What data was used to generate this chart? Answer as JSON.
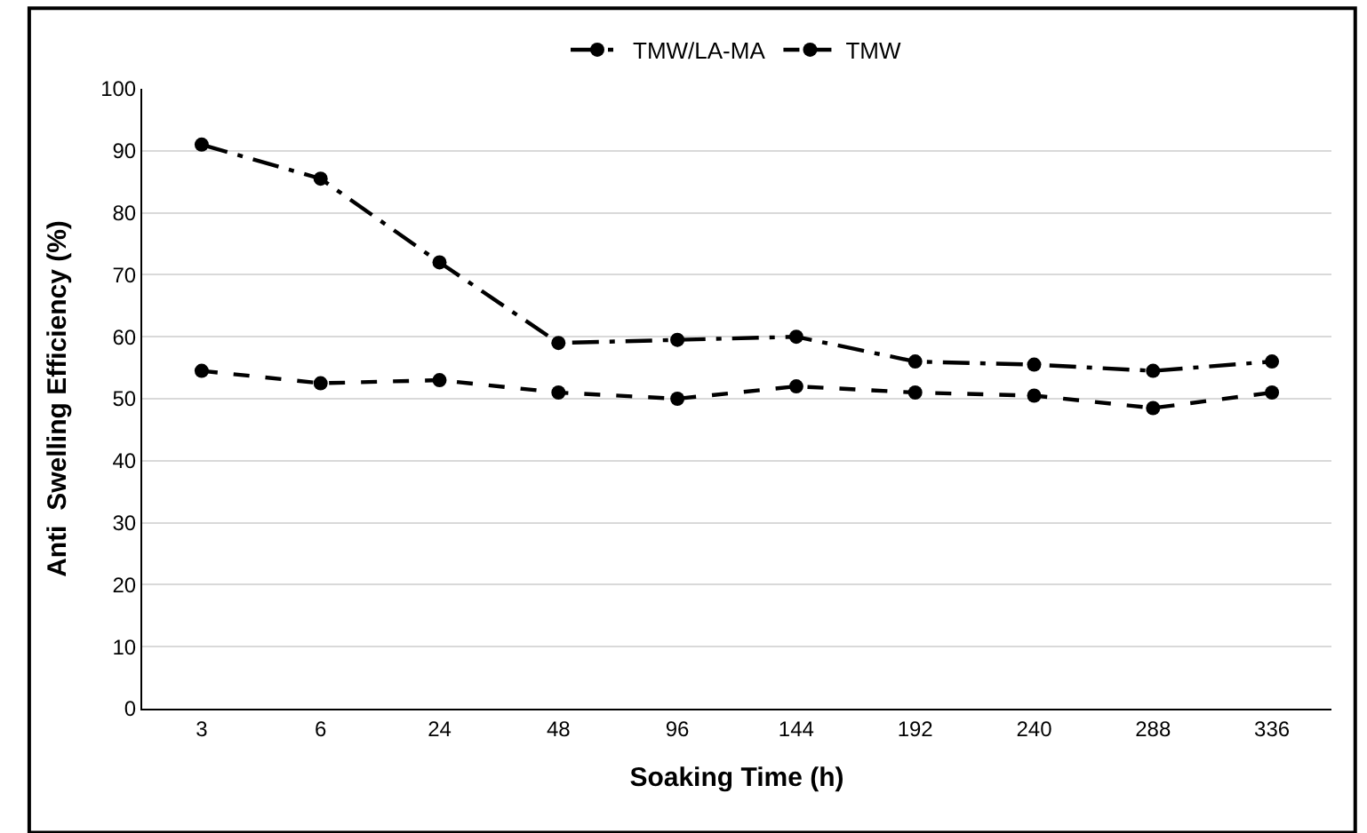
{
  "chart_data": {
    "type": "line",
    "xlabel": "Soaking Time (h)",
    "ylabel": "Anti  Swelling Efficiency (%)",
    "categories": [
      "3",
      "6",
      "24",
      "48",
      "96",
      "144",
      "192",
      "240",
      "288",
      "336"
    ],
    "series": [
      {
        "name": "TMW/LA-MA",
        "color": "#000000",
        "line_style": "dashdot",
        "values": [
          91,
          85.5,
          72,
          59,
          59.5,
          60,
          56,
          55.5,
          54.5,
          56
        ]
      },
      {
        "name": "TMW",
        "color": "#000000",
        "line_style": "dashed",
        "values": [
          54.5,
          52.5,
          53,
          51,
          50,
          52,
          51,
          50.5,
          48.5,
          51
        ]
      }
    ],
    "ylim": [
      0,
      100
    ],
    "yticks": [
      0,
      10,
      20,
      30,
      40,
      50,
      60,
      70,
      80,
      90,
      100
    ],
    "grid": "y",
    "legend": "top",
    "marker": "circle"
  }
}
